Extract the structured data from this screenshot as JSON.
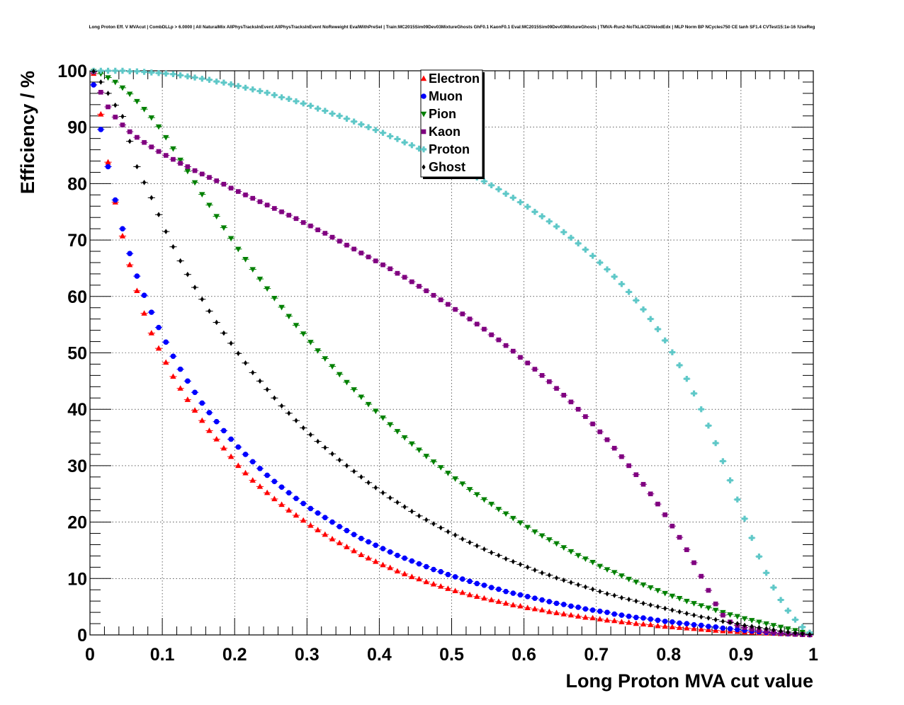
{
  "chart_data": {
    "type": "scatter",
    "title": "Long Proton Eff. V MVAcut | CombDLLp > 6.0000 | All NaturalMix AllPhysTracksInEvent:AllPhysTracksInEvent NoReweight EvalWithPreSel | Train:MC2015Sim09Dev03MixtureGhosts GhF0.1 KaonF0.1 Eval:MC2015Sim09Dev03MixtureGhosts | TMVA-Run2-NoTkLikCDVelodEdx | MLP Norm BP NCycles750 CE tanh SF1.4 CVTest15:1e-16 !UseReg",
    "xlabel": "Long Proton MVA cut value",
    "ylabel": "Efficiency / %",
    "xlim": [
      0,
      1
    ],
    "ylim": [
      0,
      100
    ],
    "xticks": [
      "0",
      "0.1",
      "0.2",
      "0.3",
      "0.4",
      "0.5",
      "0.6",
      "0.7",
      "0.8",
      "0.9",
      "1"
    ],
    "yticks": [
      "0",
      "10",
      "20",
      "30",
      "40",
      "50",
      "60",
      "70",
      "80",
      "90",
      "100"
    ],
    "grid": true,
    "legend_position": "top-center",
    "x": [
      0.005,
      0.015,
      0.025,
      0.035,
      0.045,
      0.055,
      0.065,
      0.075,
      0.085,
      0.095,
      0.105,
      0.115,
      0.125,
      0.135,
      0.145,
      0.155,
      0.165,
      0.175,
      0.185,
      0.195,
      0.205,
      0.215,
      0.225,
      0.235,
      0.245,
      0.255,
      0.265,
      0.275,
      0.285,
      0.295,
      0.305,
      0.315,
      0.325,
      0.335,
      0.345,
      0.355,
      0.365,
      0.375,
      0.385,
      0.395,
      0.405,
      0.415,
      0.425,
      0.435,
      0.445,
      0.455,
      0.465,
      0.475,
      0.485,
      0.495,
      0.505,
      0.515,
      0.525,
      0.535,
      0.545,
      0.555,
      0.565,
      0.575,
      0.585,
      0.595,
      0.605,
      0.615,
      0.625,
      0.635,
      0.645,
      0.655,
      0.665,
      0.675,
      0.685,
      0.695,
      0.705,
      0.715,
      0.725,
      0.735,
      0.745,
      0.755,
      0.765,
      0.775,
      0.785,
      0.795,
      0.805,
      0.815,
      0.825,
      0.835,
      0.845,
      0.855,
      0.865,
      0.875,
      0.885,
      0.895,
      0.905,
      0.915,
      0.925,
      0.935,
      0.945,
      0.955,
      0.965,
      0.975,
      0.985,
      0.995
    ],
    "series": [
      {
        "name": "Electron",
        "color": "#ff0000",
        "marker": "triangle-up",
        "values": [
          99.5,
          92.3,
          83.8,
          76.7,
          70.7,
          65.6,
          61.0,
          57.0,
          53.5,
          50.8,
          48.3,
          45.8,
          43.7,
          41.7,
          39.8,
          38.0,
          36.2,
          34.7,
          33.1,
          31.6,
          30.0,
          28.7,
          27.4,
          26.3,
          25.2,
          24.1,
          23.1,
          22.1,
          21.2,
          20.3,
          19.4,
          18.6,
          17.8,
          17.0,
          16.3,
          15.6,
          14.9,
          14.2,
          13.6,
          13.0,
          12.4,
          11.9,
          11.3,
          10.8,
          10.3,
          9.9,
          9.4,
          9.0,
          8.6,
          8.2,
          7.8,
          7.5,
          7.1,
          6.8,
          6.5,
          6.2,
          5.9,
          5.6,
          5.3,
          5.1,
          4.8,
          4.6,
          4.4,
          4.1,
          3.9,
          3.7,
          3.5,
          3.3,
          3.1,
          3.0,
          2.8,
          2.6,
          2.5,
          2.3,
          2.2,
          2.0,
          1.9,
          1.8,
          1.6,
          1.5,
          1.4,
          1.3,
          1.2,
          1.1,
          1.0,
          0.9,
          0.8,
          0.7,
          0.65,
          0.57,
          0.5,
          0.43,
          0.37,
          0.31,
          0.26,
          0.2,
          0.15,
          0.1,
          0.06,
          0.02
        ]
      },
      {
        "name": "Muon",
        "color": "#0000ff",
        "marker": "circle",
        "values": [
          97.5,
          89.6,
          83.0,
          77.1,
          72.0,
          67.6,
          63.6,
          60.2,
          57.2,
          54.5,
          51.9,
          49.4,
          47.1,
          45.0,
          43.0,
          41.1,
          39.4,
          37.8,
          36.2,
          34.7,
          33.3,
          32.0,
          30.7,
          29.5,
          28.3,
          27.2,
          26.2,
          25.2,
          24.2,
          23.3,
          22.4,
          21.6,
          20.8,
          20.0,
          19.2,
          18.5,
          17.8,
          17.1,
          16.5,
          15.9,
          15.3,
          14.7,
          14.1,
          13.6,
          13.1,
          12.6,
          12.1,
          11.6,
          11.2,
          10.7,
          10.3,
          9.9,
          9.5,
          9.1,
          8.8,
          8.4,
          8.1,
          7.7,
          7.4,
          7.1,
          6.8,
          6.5,
          6.2,
          5.9,
          5.6,
          5.4,
          5.1,
          4.9,
          4.6,
          4.4,
          4.2,
          4.0,
          3.7,
          3.5,
          3.3,
          3.1,
          3.0,
          2.8,
          2.6,
          2.4,
          2.3,
          2.1,
          2.0,
          1.8,
          1.7,
          1.5,
          1.4,
          1.2,
          1.1,
          0.95,
          0.8,
          0.68,
          0.56,
          0.45,
          0.36,
          0.28,
          0.2,
          0.14,
          0.08,
          0.03
        ]
      },
      {
        "name": "Pion",
        "color": "#008000",
        "marker": "triangle-down",
        "values": [
          99.9,
          99.5,
          98.8,
          98.0,
          97.0,
          95.9,
          94.6,
          93.2,
          91.7,
          90.1,
          88.2,
          86.2,
          84.2,
          82.2,
          80.2,
          78.1,
          76.2,
          74.2,
          72.2,
          70.3,
          68.4,
          66.6,
          64.8,
          63.1,
          61.4,
          59.7,
          58.1,
          56.5,
          54.9,
          53.4,
          51.9,
          50.4,
          49.0,
          47.6,
          46.2,
          44.8,
          43.5,
          42.2,
          40.9,
          39.7,
          38.5,
          37.3,
          36.1,
          35.0,
          33.9,
          32.8,
          31.7,
          30.7,
          29.7,
          28.7,
          27.7,
          26.8,
          25.8,
          24.9,
          24.0,
          23.2,
          22.3,
          21.5,
          20.7,
          19.9,
          19.1,
          18.3,
          17.6,
          16.9,
          16.2,
          15.5,
          14.8,
          14.1,
          13.5,
          12.9,
          12.2,
          11.6,
          11.1,
          10.5,
          9.9,
          9.4,
          8.9,
          8.4,
          7.9,
          7.4,
          6.9,
          6.5,
          6.0,
          5.6,
          5.2,
          4.8,
          4.4,
          4.0,
          3.6,
          3.3,
          2.9,
          2.6,
          2.3,
          2.0,
          1.7,
          1.4,
          1.1,
          0.8,
          0.5,
          0.2
        ]
      },
      {
        "name": "Kaon",
        "color": "#800080",
        "marker": "square",
        "values": [
          99.8,
          96.2,
          93.6,
          91.8,
          90.4,
          89.2,
          88.2,
          87.3,
          86.5,
          85.7,
          85.0,
          84.3,
          83.6,
          83.0,
          82.3,
          81.7,
          81.1,
          80.5,
          79.9,
          79.2,
          78.6,
          78.0,
          77.4,
          76.8,
          76.2,
          75.6,
          75.0,
          74.4,
          73.8,
          73.1,
          72.5,
          71.8,
          71.2,
          70.5,
          69.8,
          69.1,
          68.4,
          67.7,
          67.0,
          66.3,
          65.6,
          64.9,
          64.1,
          63.4,
          62.6,
          61.8,
          61.0,
          60.2,
          59.4,
          58.6,
          57.7,
          56.9,
          56.0,
          55.1,
          54.2,
          53.2,
          52.3,
          51.3,
          50.3,
          49.2,
          48.2,
          47.1,
          46.0,
          44.9,
          43.7,
          42.5,
          41.3,
          40.0,
          38.7,
          37.4,
          36.0,
          34.6,
          33.1,
          31.6,
          30.0,
          28.4,
          26.7,
          25.0,
          23.2,
          21.3,
          19.3,
          17.3,
          15.1,
          12.8,
          10.4,
          7.9,
          5.5,
          3.5,
          2.3,
          1.7,
          1.3,
          1.0,
          0.8,
          0.6,
          0.45,
          0.3,
          0.2,
          0.12,
          0.06,
          0.02
        ]
      },
      {
        "name": "Proton",
        "color": "#5fc8c8",
        "marker": "cross",
        "values": [
          100.0,
          100.0,
          100.0,
          100.0,
          100.0,
          99.9,
          99.9,
          99.8,
          99.7,
          99.6,
          99.5,
          99.4,
          99.2,
          99.0,
          98.8,
          98.6,
          98.4,
          98.1,
          97.9,
          97.6,
          97.3,
          97.0,
          96.7,
          96.4,
          96.1,
          95.7,
          95.3,
          95.0,
          94.6,
          94.2,
          93.8,
          93.3,
          92.9,
          92.4,
          92.0,
          91.5,
          91.0,
          90.5,
          90.0,
          89.5,
          89.0,
          88.4,
          87.9,
          87.3,
          86.8,
          86.2,
          85.6,
          85.0,
          84.4,
          83.8,
          83.1,
          82.5,
          81.8,
          81.1,
          80.4,
          79.7,
          79.0,
          78.2,
          77.5,
          76.7,
          75.9,
          75.0,
          74.2,
          73.3,
          72.4,
          71.4,
          70.4,
          69.4,
          68.3,
          67.2,
          66.0,
          64.8,
          63.5,
          62.2,
          60.8,
          59.3,
          57.7,
          56.0,
          54.2,
          52.2,
          50.1,
          47.8,
          45.4,
          42.8,
          40.0,
          37.1,
          34.0,
          30.8,
          27.4,
          24.0,
          20.6,
          17.2,
          13.9,
          11.0,
          8.4,
          6.2,
          4.3,
          2.7,
          1.4,
          0.4
        ]
      },
      {
        "name": "Ghost",
        "color": "#000000",
        "marker": "star",
        "values": [
          99.9,
          98.0,
          96.0,
          93.9,
          91.9,
          87.5,
          83.0,
          80.2,
          77.5,
          74.5,
          71.5,
          68.8,
          66.3,
          63.9,
          61.6,
          59.5,
          57.4,
          55.4,
          53.5,
          51.7,
          49.9,
          48.2,
          46.5,
          45.0,
          43.5,
          42.0,
          40.6,
          39.3,
          38.0,
          36.7,
          35.5,
          34.3,
          33.2,
          32.1,
          31.0,
          30.0,
          29.0,
          28.0,
          27.0,
          26.1,
          25.2,
          24.3,
          23.5,
          22.7,
          21.9,
          21.1,
          20.4,
          19.7,
          19.0,
          18.3,
          17.7,
          17.0,
          16.4,
          15.8,
          15.2,
          14.6,
          14.1,
          13.5,
          13.0,
          12.5,
          12.0,
          11.5,
          11.0,
          10.6,
          10.1,
          9.7,
          9.3,
          8.9,
          8.5,
          8.1,
          7.7,
          7.3,
          7.0,
          6.6,
          6.3,
          6.0,
          5.6,
          5.3,
          5.0,
          4.7,
          4.4,
          4.1,
          3.8,
          3.5,
          3.2,
          3.0,
          2.7,
          2.4,
          2.2,
          2.0,
          1.7,
          1.5,
          1.3,
          1.1,
          0.9,
          0.7,
          0.5,
          0.35,
          0.2,
          0.1
        ]
      }
    ]
  }
}
